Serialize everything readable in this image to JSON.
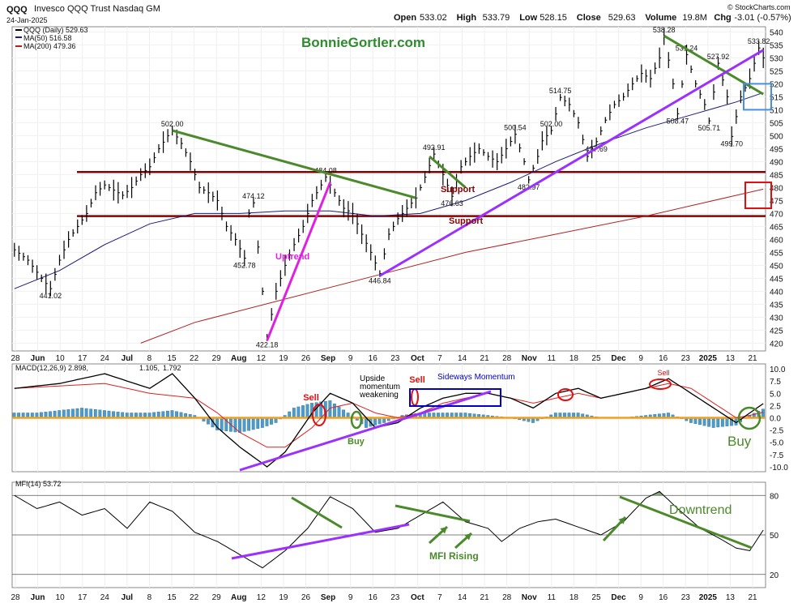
{
  "header": {
    "symbol": "QQQ",
    "name": "Invesco QQQ Trust",
    "exchange": "Nasdaq GM",
    "date": "24-Jan-2025",
    "watermark": "© StockCharts.com",
    "open_label": "Open",
    "open": "533.02",
    "high_label": "High",
    "high": "533.79",
    "low_label": "Low",
    "low": "528.15",
    "close_label": "Close",
    "close": "529.63",
    "volume_label": "Volume",
    "volume": "19.8M",
    "chg_label": "Chg",
    "chg": "-3.01 (-0.57%)"
  },
  "legend": {
    "price": "QQQ (Daily) 529.63",
    "ma50": "MA(50) 516.58",
    "ma200": "MA(200) 479.36",
    "macd_label": "MACD(12,26,9)",
    "macd_v1": "2.898",
    "macd_v2": "1.105",
    "macd_v3": "1.792",
    "mfi": "MFI(14) 53.72"
  },
  "annotations": {
    "site": "BonnieGortler.com",
    "uptrend": "Uptrend",
    "support1": "Support",
    "support2": "Support",
    "sell1": "Sell",
    "sell2": "Sell",
    "sell3": "Sell",
    "buy1": "Buy",
    "buy2": "Buy",
    "upside_line1": "Upside",
    "upside_line2": "momentum",
    "upside_line3": "weakening",
    "sideways": "Sideways Momentum",
    "mfi_rising": "MFI Rising",
    "downtrend": "Downtrend"
  },
  "colors": {
    "price": "#000000",
    "ma50": "#1a1a7a",
    "ma200": "#b22222",
    "support": "#8b0000",
    "trend_green": "#4b8a2a",
    "trend_purple": "#9b30ff",
    "uptrend_magenta": "#e020e0",
    "hist": "#4a9ccc",
    "signal": "#e02020",
    "zero": "#f0a020",
    "site_text": "#2e8b2e"
  },
  "chart_data": [
    {
      "type": "line",
      "name": "price",
      "y_ticks": [
        420,
        425,
        430,
        435,
        440,
        445,
        450,
        455,
        460,
        465,
        470,
        475,
        480,
        485,
        490,
        495,
        500,
        505,
        510,
        515,
        520,
        525,
        530,
        535,
        540
      ],
      "ylim": [
        417,
        542
      ],
      "x_labels": [
        "28",
        "Jun",
        "10",
        "17",
        "24",
        "Jul",
        "8",
        "15",
        "22",
        "29",
        "Aug",
        "12",
        "19",
        "26",
        "Sep",
        "9",
        "16",
        "23",
        "Oct",
        "7",
        "14",
        "21",
        "28",
        "Nov",
        "11",
        "18",
        "25",
        "Dec",
        "9",
        "16",
        "23",
        "2025",
        "13",
        "21"
      ],
      "close_points": [
        [
          0,
          456
        ],
        [
          3,
          452
        ],
        [
          6,
          445
        ],
        [
          8,
          441.02
        ],
        [
          10,
          452
        ],
        [
          12,
          460
        ],
        [
          14,
          465
        ],
        [
          16,
          470
        ],
        [
          18,
          478
        ],
        [
          20,
          481
        ],
        [
          22,
          479
        ],
        [
          24,
          477
        ],
        [
          26,
          480
        ],
        [
          28,
          485
        ],
        [
          30,
          488
        ],
        [
          32,
          495
        ],
        [
          34,
          500
        ],
        [
          35,
          502.0
        ],
        [
          37,
          497
        ],
        [
          39,
          490
        ],
        [
          41,
          480
        ],
        [
          43,
          478
        ],
        [
          45,
          475
        ],
        [
          47,
          465
        ],
        [
          49,
          460
        ],
        [
          51,
          452.78
        ],
        [
          52,
          470
        ],
        [
          53,
          474.12
        ],
        [
          55,
          440
        ],
        [
          56,
          422.18
        ],
        [
          58,
          440
        ],
        [
          60,
          450
        ],
        [
          62,
          458
        ],
        [
          64,
          465
        ],
        [
          66,
          475
        ],
        [
          68,
          481
        ],
        [
          69,
          484.08
        ],
        [
          71,
          478
        ],
        [
          73,
          472
        ],
        [
          75,
          470
        ],
        [
          77,
          462
        ],
        [
          79,
          455
        ],
        [
          81,
          446.84
        ],
        [
          83,
          462
        ],
        [
          85,
          468
        ],
        [
          87,
          472
        ],
        [
          89,
          476
        ],
        [
          91,
          484
        ],
        [
          93,
          492.91
        ],
        [
          95,
          485
        ],
        [
          97,
          476.63
        ],
        [
          99,
          488
        ],
        [
          101,
          492
        ],
        [
          103,
          495
        ],
        [
          105,
          492
        ],
        [
          107,
          490
        ],
        [
          109,
          495
        ],
        [
          111,
          500.54
        ],
        [
          113,
          490
        ],
        [
          114,
          482.97
        ],
        [
          116,
          492
        ],
        [
          117,
          498
        ],
        [
          119,
          502
        ],
        [
          121,
          514.75
        ],
        [
          123,
          512
        ],
        [
          125,
          505
        ],
        [
          127,
          492
        ],
        [
          129,
          497.69
        ],
        [
          131,
          506
        ],
        [
          133,
          512
        ],
        [
          135,
          515
        ],
        [
          137,
          520
        ],
        [
          139,
          524
        ],
        [
          141,
          522
        ],
        [
          143,
          530
        ],
        [
          144,
          538.28
        ],
        [
          146,
          520
        ],
        [
          147,
          508.47
        ],
        [
          149,
          531.24
        ],
        [
          151,
          520
        ],
        [
          153,
          512
        ],
        [
          154,
          505.71
        ],
        [
          156,
          527.92
        ],
        [
          158,
          515
        ],
        [
          159,
          499.7
        ],
        [
          161,
          515
        ],
        [
          163,
          522
        ],
        [
          165,
          533.82
        ],
        [
          166,
          530
        ]
      ],
      "labeled_values": {
        "441.02": 441.02,
        "502.00": 502.0,
        "452.78": 452.78,
        "474.12": 474.12,
        "422.18": 422.18,
        "484.08": 484.08,
        "446.84": 446.84,
        "492.91": 492.91,
        "476.63": 476.63,
        "500.54": 500.54,
        "482.97": 482.97,
        "514.75": 514.75,
        "497.69": 497.69,
        "538.28": 538.28,
        "508.47": 508.47,
        "531.24": 531.24,
        "505.71": 505.71,
        "527.92": 527.92,
        "499.70": 499.7,
        "533.82": 533.82
      },
      "ma50": [
        [
          0,
          441
        ],
        [
          10,
          448
        ],
        [
          20,
          458
        ],
        [
          30,
          466
        ],
        [
          40,
          470
        ],
        [
          50,
          470
        ],
        [
          60,
          471
        ],
        [
          70,
          471
        ],
        [
          80,
          469
        ],
        [
          90,
          470
        ],
        [
          100,
          475
        ],
        [
          110,
          482
        ],
        [
          120,
          490
        ],
        [
          130,
          497
        ],
        [
          140,
          503
        ],
        [
          150,
          508
        ],
        [
          160,
          513
        ],
        [
          166,
          516.58
        ]
      ],
      "ma200": [
        [
          28,
          420
        ],
        [
          40,
          428
        ],
        [
          60,
          437
        ],
        [
          80,
          446
        ],
        [
          100,
          455
        ],
        [
          120,
          462
        ],
        [
          140,
          469
        ],
        [
          160,
          477
        ],
        [
          166,
          479.36
        ]
      ],
      "support_levels": [
        486,
        469
      ]
    },
    {
      "type": "line",
      "name": "MACD(12,26,9)",
      "y_ticks": [
        -10.0,
        -7.5,
        -5.0,
        -2.5,
        0.0,
        2.5,
        5.0,
        7.5,
        10.0
      ],
      "ylim": [
        -11,
        11
      ],
      "macd": [
        [
          0,
          6
        ],
        [
          10,
          7
        ],
        [
          20,
          9
        ],
        [
          30,
          6
        ],
        [
          35,
          9
        ],
        [
          40,
          4
        ],
        [
          45,
          -2
        ],
        [
          50,
          -6
        ],
        [
          56,
          -10
        ],
        [
          60,
          -7
        ],
        [
          66,
          1
        ],
        [
          70,
          5
        ],
        [
          75,
          3
        ],
        [
          80,
          -2
        ],
        [
          85,
          -1
        ],
        [
          90,
          2
        ],
        [
          95,
          4
        ],
        [
          100,
          5
        ],
        [
          105,
          5
        ],
        [
          110,
          4
        ],
        [
          115,
          2
        ],
        [
          120,
          5
        ],
        [
          125,
          6
        ],
        [
          130,
          4
        ],
        [
          135,
          5
        ],
        [
          140,
          6
        ],
        [
          145,
          8
        ],
        [
          150,
          5
        ],
        [
          155,
          2
        ],
        [
          160,
          -1
        ],
        [
          163,
          1
        ],
        [
          166,
          2.898
        ]
      ],
      "signal": [
        [
          0,
          6
        ],
        [
          10,
          6.5
        ],
        [
          20,
          7
        ],
        [
          30,
          5
        ],
        [
          40,
          4
        ],
        [
          45,
          1
        ],
        [
          50,
          -3
        ],
        [
          56,
          -6
        ],
        [
          60,
          -6
        ],
        [
          66,
          -2
        ],
        [
          70,
          2
        ],
        [
          75,
          3
        ],
        [
          80,
          1
        ],
        [
          85,
          0
        ],
        [
          90,
          1
        ],
        [
          95,
          3
        ],
        [
          100,
          4
        ],
        [
          105,
          5
        ],
        [
          110,
          4
        ],
        [
          115,
          3
        ],
        [
          120,
          4
        ],
        [
          125,
          5
        ],
        [
          130,
          4
        ],
        [
          135,
          5
        ],
        [
          140,
          6
        ],
        [
          145,
          7
        ],
        [
          150,
          6
        ],
        [
          155,
          3
        ],
        [
          160,
          0
        ],
        [
          163,
          0.5
        ],
        [
          166,
          1.105
        ]
      ],
      "histogram": [
        [
          0,
          1
        ],
        [
          5,
          1
        ],
        [
          10,
          1.5
        ],
        [
          15,
          2
        ],
        [
          20,
          1.5
        ],
        [
          25,
          1
        ],
        [
          30,
          1
        ],
        [
          35,
          1.5
        ],
        [
          40,
          0.5
        ],
        [
          45,
          -2.5
        ],
        [
          50,
          -3
        ],
        [
          55,
          -2
        ],
        [
          58,
          -1
        ],
        [
          62,
          2
        ],
        [
          66,
          3
        ],
        [
          70,
          3.5
        ],
        [
          74,
          1
        ],
        [
          78,
          -2
        ],
        [
          82,
          -1
        ],
        [
          86,
          0.5
        ],
        [
          90,
          1
        ],
        [
          95,
          1
        ],
        [
          100,
          1
        ],
        [
          105,
          0.5
        ],
        [
          110,
          0
        ],
        [
          115,
          -1
        ],
        [
          120,
          1
        ],
        [
          125,
          1
        ],
        [
          130,
          0
        ],
        [
          135,
          0
        ],
        [
          140,
          0.5
        ],
        [
          145,
          1
        ],
        [
          150,
          -1
        ],
        [
          155,
          -2
        ],
        [
          160,
          -1.5
        ],
        [
          163,
          0.5
        ],
        [
          166,
          1.792
        ]
      ]
    },
    {
      "type": "line",
      "name": "MFI(14)",
      "y_ticks": [
        20,
        50,
        80
      ],
      "ylim": [
        10,
        90
      ],
      "values": [
        [
          0,
          80
        ],
        [
          5,
          70
        ],
        [
          10,
          75
        ],
        [
          15,
          65
        ],
        [
          20,
          70
        ],
        [
          25,
          55
        ],
        [
          30,
          75
        ],
        [
          35,
          68
        ],
        [
          40,
          52
        ],
        [
          45,
          45
        ],
        [
          50,
          35
        ],
        [
          55,
          25
        ],
        [
          60,
          38
        ],
        [
          65,
          55
        ],
        [
          70,
          79
        ],
        [
          75,
          70
        ],
        [
          80,
          52
        ],
        [
          85,
          55
        ],
        [
          90,
          65
        ],
        [
          95,
          75
        ],
        [
          100,
          60
        ],
        [
          105,
          55
        ],
        [
          108,
          45
        ],
        [
          112,
          55
        ],
        [
          116,
          60
        ],
        [
          120,
          62
        ],
        [
          125,
          56
        ],
        [
          130,
          50
        ],
        [
          135,
          60
        ],
        [
          140,
          78
        ],
        [
          143,
          83
        ],
        [
          147,
          70
        ],
        [
          152,
          55
        ],
        [
          156,
          48
        ],
        [
          160,
          40
        ],
        [
          163,
          38
        ],
        [
          166,
          53.72
        ]
      ]
    }
  ]
}
